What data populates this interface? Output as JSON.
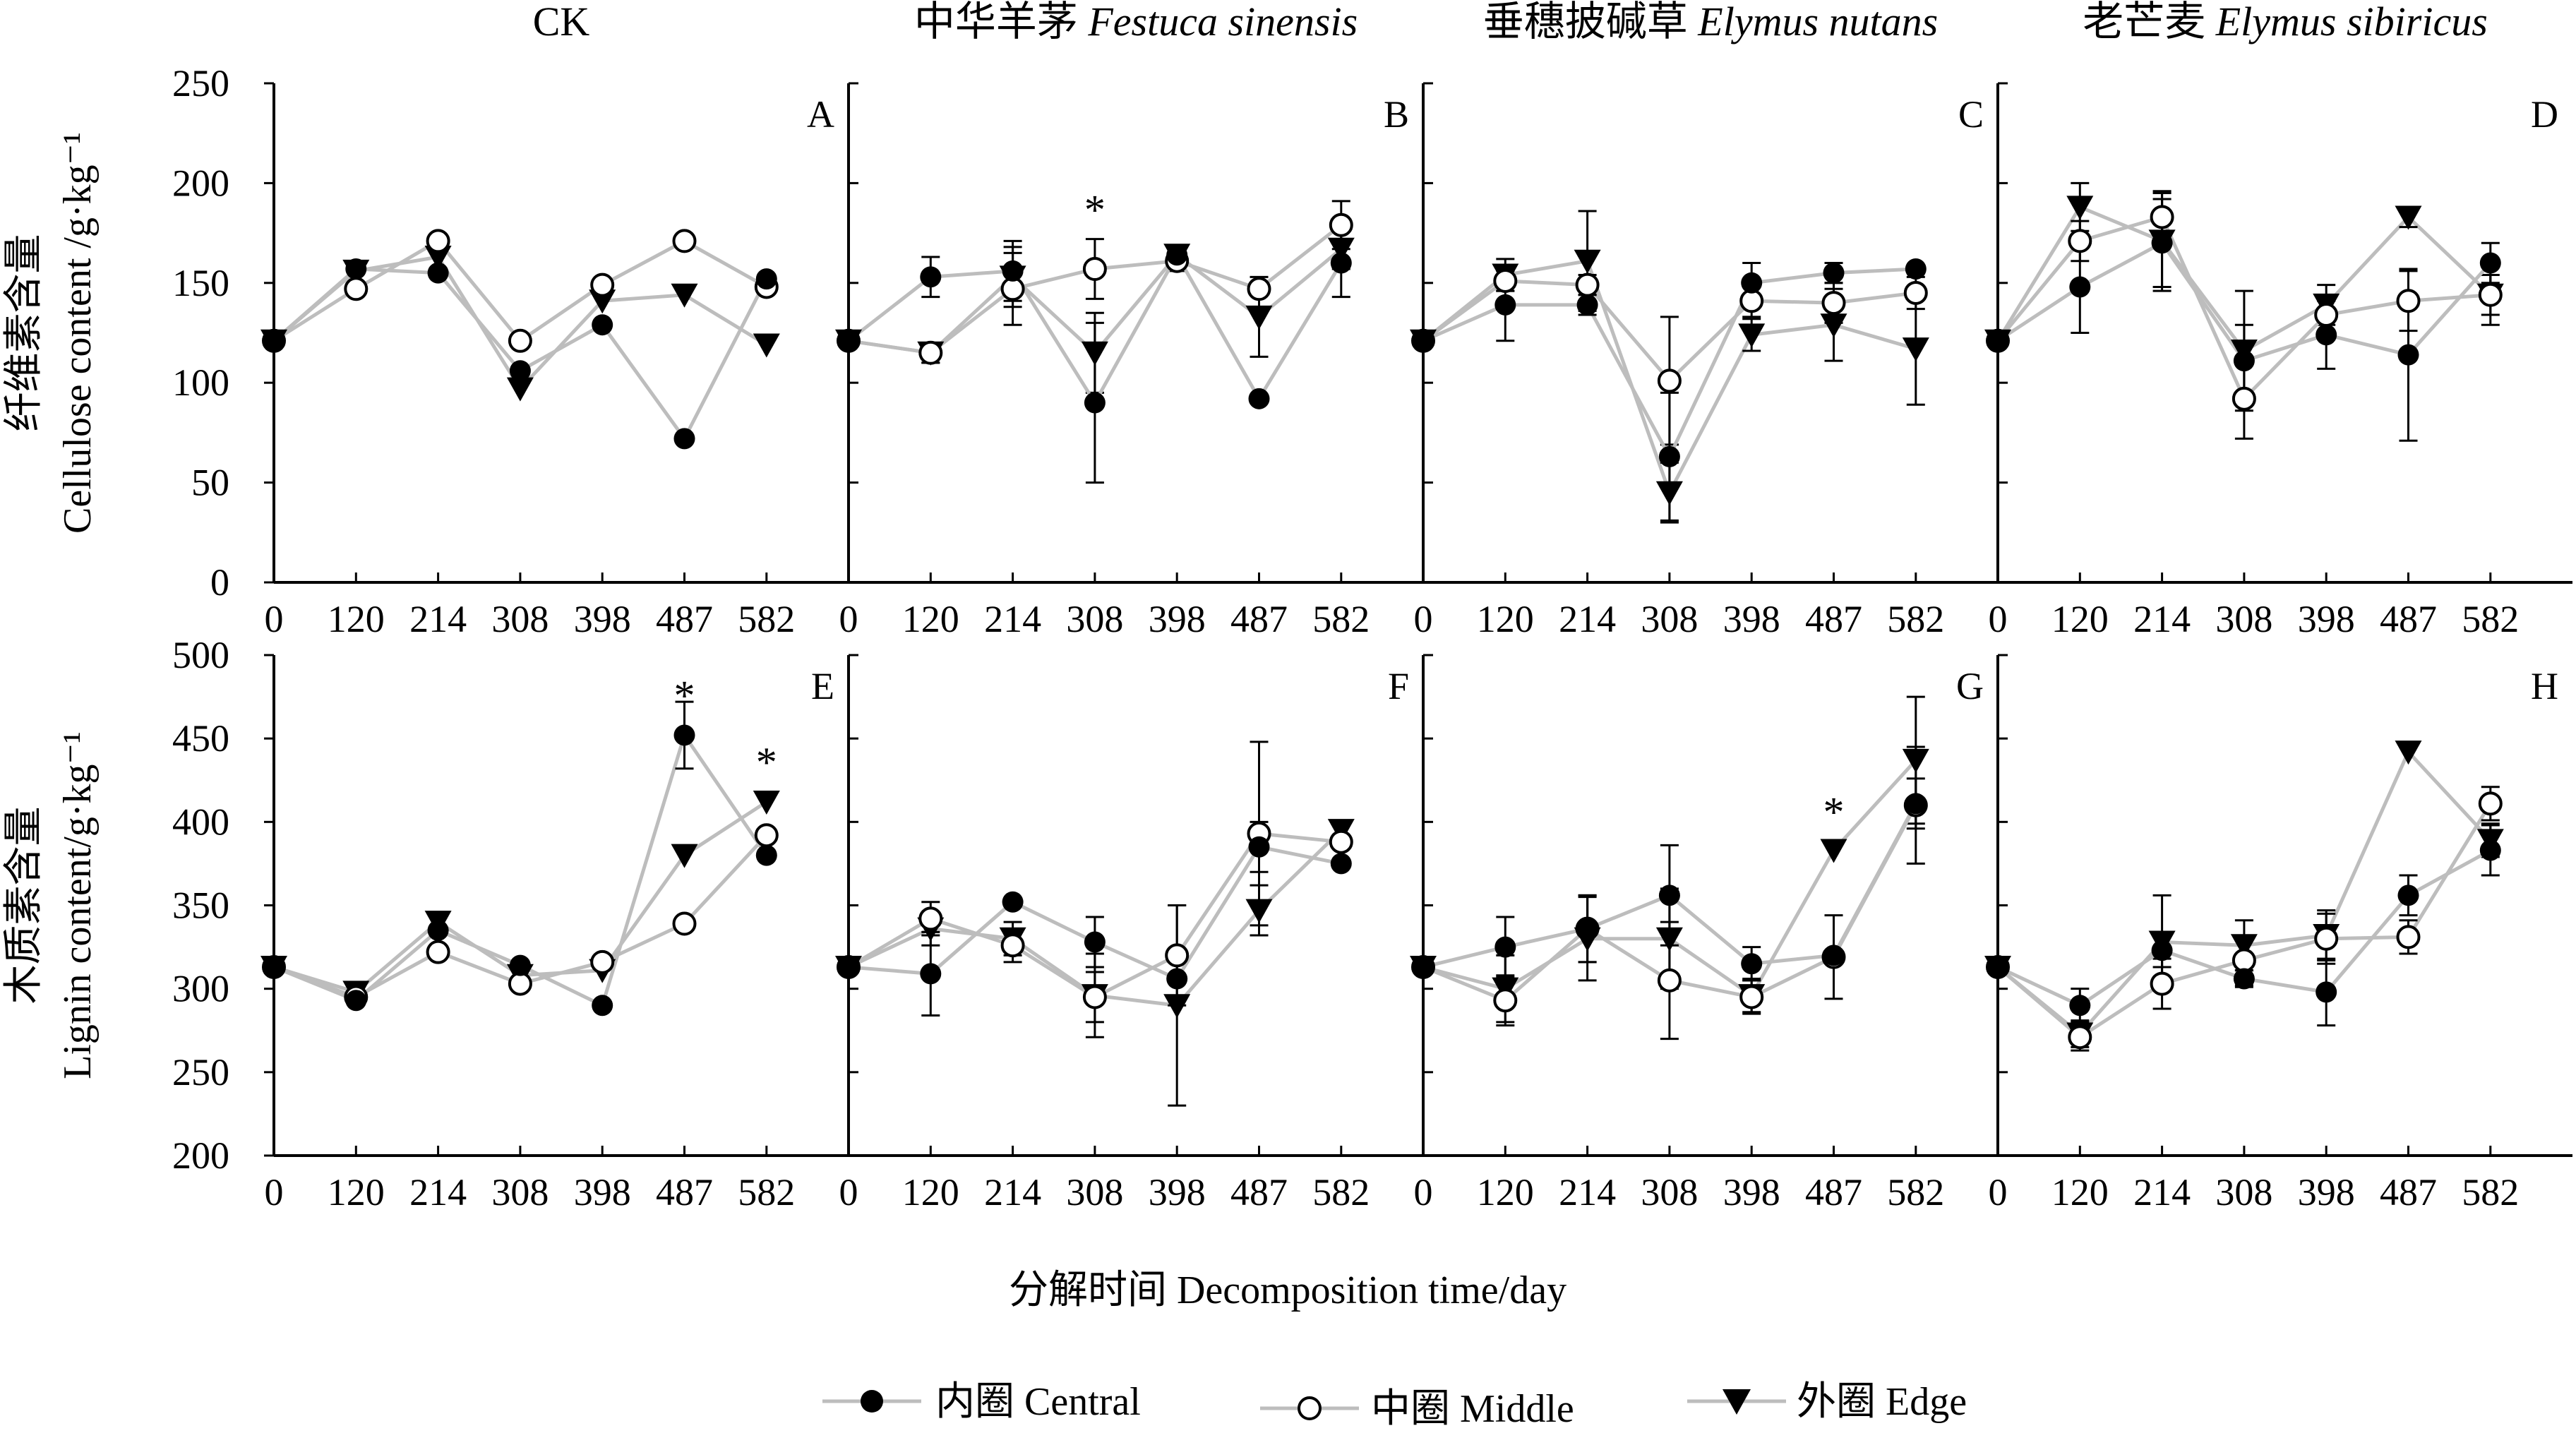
{
  "chart_data": {
    "type": "line",
    "x_label": "分解时间 Decomposition time/day",
    "x_ticks": [
      "0",
      "120",
      "214",
      "308",
      "398",
      "487",
      "582"
    ],
    "columns": [
      {
        "title_cn": "CK",
        "title_latin": ""
      },
      {
        "title_cn": "中华羊茅",
        "title_latin": "Festuca sinensis"
      },
      {
        "title_cn": "垂穗披碱草",
        "title_latin": "Elymus nutans"
      },
      {
        "title_cn": "老芒麦",
        "title_latin": "Elymus sibiricus"
      }
    ],
    "legend": [
      {
        "key": "central",
        "label": "内圈  Central",
        "marker": "filled-circle"
      },
      {
        "key": "middle",
        "label": "中圈  Middle",
        "marker": "open-circle"
      },
      {
        "key": "edge",
        "label": "外圈  Edge",
        "marker": "filled-triangle-down"
      }
    ],
    "rows": [
      {
        "ylabel_cn": "纤维素含量",
        "ylabel_en": "Cellulose content /g·kg⁻¹",
        "ylim": [
          0,
          250
        ],
        "yticks": [
          "0",
          "50",
          "100",
          "150",
          "200",
          "250"
        ],
        "panels": [
          {
            "letter": "A",
            "series": {
              "central": [
                121,
                157,
                155,
                106,
                129,
                72,
                152
              ],
              "middle": [
                121,
                147,
                171,
                121,
                149,
                171,
                148
              ],
              "edge": [
                121,
                156,
                163,
                97,
                141,
                144,
                119
              ]
            },
            "err": {
              "central": [
                0,
                0,
                0,
                0,
                0,
                0,
                0
              ],
              "middle": [
                0,
                0,
                0,
                0,
                0,
                0,
                0
              ],
              "edge": [
                0,
                0,
                0,
                0,
                0,
                0,
                0
              ]
            },
            "stars": []
          },
          {
            "letter": "B",
            "series": {
              "central": [
                121,
                153,
                156,
                90,
                164,
                92,
                160
              ],
              "middle": [
                121,
                115,
                147,
                157,
                161,
                147,
                179
              ],
              "edge": [
                121,
                115,
                153,
                115,
                164,
                133,
                167
              ]
            },
            "err": {
              "central": [
                0,
                10,
                15,
                40,
                5,
                0,
                17
              ],
              "middle": [
                0,
                5,
                18,
                15,
                5,
                0,
                12
              ],
              "edge": [
                0,
                5,
                15,
                20,
                5,
                20,
                10
              ]
            },
            "stars": [
              {
                "x": 3,
                "y": 190
              }
            ]
          },
          {
            "letter": "C",
            "series": {
              "central": [
                121,
                139,
                139,
                63,
                150,
                155,
                157
              ],
              "middle": [
                121,
                151,
                149,
                101,
                141,
                140,
                145
              ],
              "edge": [
                121,
                154,
                161,
                45,
                124,
                129,
                117
              ]
            },
            "err": {
              "central": [
                0,
                18,
                5,
                32,
                10,
                5,
                0
              ],
              "middle": [
                0,
                5,
                5,
                32,
                8,
                10,
                8
              ],
              "edge": [
                0,
                8,
                25,
                15,
                8,
                18,
                28
              ]
            },
            "stars": []
          },
          {
            "letter": "D",
            "series": {
              "central": [
                121,
                148,
                170,
                111,
                124,
                114,
                160
              ],
              "middle": [
                121,
                171,
                183,
                92,
                134,
                141,
                144
              ],
              "edge": [
                121,
                188,
                171,
                116,
                139,
                183,
                144
              ]
            },
            "err": {
              "central": [
                0,
                23,
                22,
                18,
                17,
                43,
                10
              ],
              "middle": [
                0,
                10,
                12,
                20,
                10,
                15,
                10
              ],
              "edge": [
                0,
                12,
                25,
                30,
                10,
                5,
                15
              ]
            },
            "stars": []
          }
        ]
      },
      {
        "ylabel_cn": "木质素含量",
        "ylabel_en": "Lignin content/g·kg⁻¹",
        "ylim": [
          200,
          500
        ],
        "yticks": [
          "200",
          "250",
          "300",
          "350",
          "400",
          "450",
          "500"
        ],
        "panels": [
          {
            "letter": "E",
            "series": {
              "central": [
                313,
                293,
                335,
                314,
                290,
                452,
                380
              ],
              "middle": [
                313,
                295,
                322,
                303,
                316,
                339,
                392
              ],
              "edge": [
                313,
                298,
                340,
                308,
                311,
                380,
                412
              ]
            },
            "err": {
              "central": [
                0,
                0,
                0,
                0,
                0,
                20,
                0
              ],
              "middle": [
                0,
                0,
                0,
                0,
                0,
                0,
                0
              ],
              "edge": [
                0,
                0,
                0,
                0,
                0,
                0,
                0
              ]
            },
            "stars": [
              {
                "x": 5,
                "y": 480
              },
              {
                "x": 6,
                "y": 440
              }
            ]
          },
          {
            "letter": "F",
            "series": {
              "central": [
                313,
                309,
                352,
                328,
                306,
                385,
                375
              ],
              "middle": [
                313,
                342,
                326,
                295,
                320,
                393,
                388
              ],
              "edge": [
                313,
                336,
                330,
                296,
                290,
                347,
                395
              ]
            },
            "err": {
              "central": [
                0,
                25,
                0,
                15,
                0,
                15,
                0
              ],
              "middle": [
                0,
                10,
                10,
                15,
                30,
                55,
                0
              ],
              "edge": [
                0,
                10,
                10,
                25,
                60,
                15,
                0
              ]
            },
            "stars": []
          },
          {
            "letter": "G",
            "series": {
              "central": [
                313,
                325,
                336,
                356,
                315,
                320,
                411
              ],
              "middle": [
                313,
                293,
                336,
                305,
                295,
                319,
                410
              ],
              "edge": [
                313,
                300,
                330,
                330,
                296,
                383,
                437
              ]
            },
            "err": {
              "central": [
                0,
                18,
                20,
                30,
                10,
                0,
                15
              ],
              "middle": [
                0,
                15,
                20,
                35,
                10,
                25,
                35
              ],
              "edge": [
                0,
                20,
                25,
                30,
                10,
                0,
                38
              ]
            },
            "stars": [
              {
                "x": 5,
                "y": 410
              }
            ]
          },
          {
            "letter": "H",
            "series": {
              "central": [
                313,
                290,
                323,
                306,
                298,
                356,
                383
              ],
              "middle": [
                313,
                271,
                303,
                317,
                330,
                331,
                411
              ],
              "edge": [
                313,
                273,
                328,
                326,
                332,
                442,
                389
              ]
            },
            "err": {
              "central": [
                0,
                10,
                10,
                5,
                20,
                12,
                15
              ],
              "middle": [
                0,
                8,
                15,
                15,
                15,
                10,
                10
              ],
              "edge": [
                0,
                8,
                28,
                15,
                15,
                0,
                10
              ]
            },
            "stars": []
          }
        ]
      }
    ]
  }
}
